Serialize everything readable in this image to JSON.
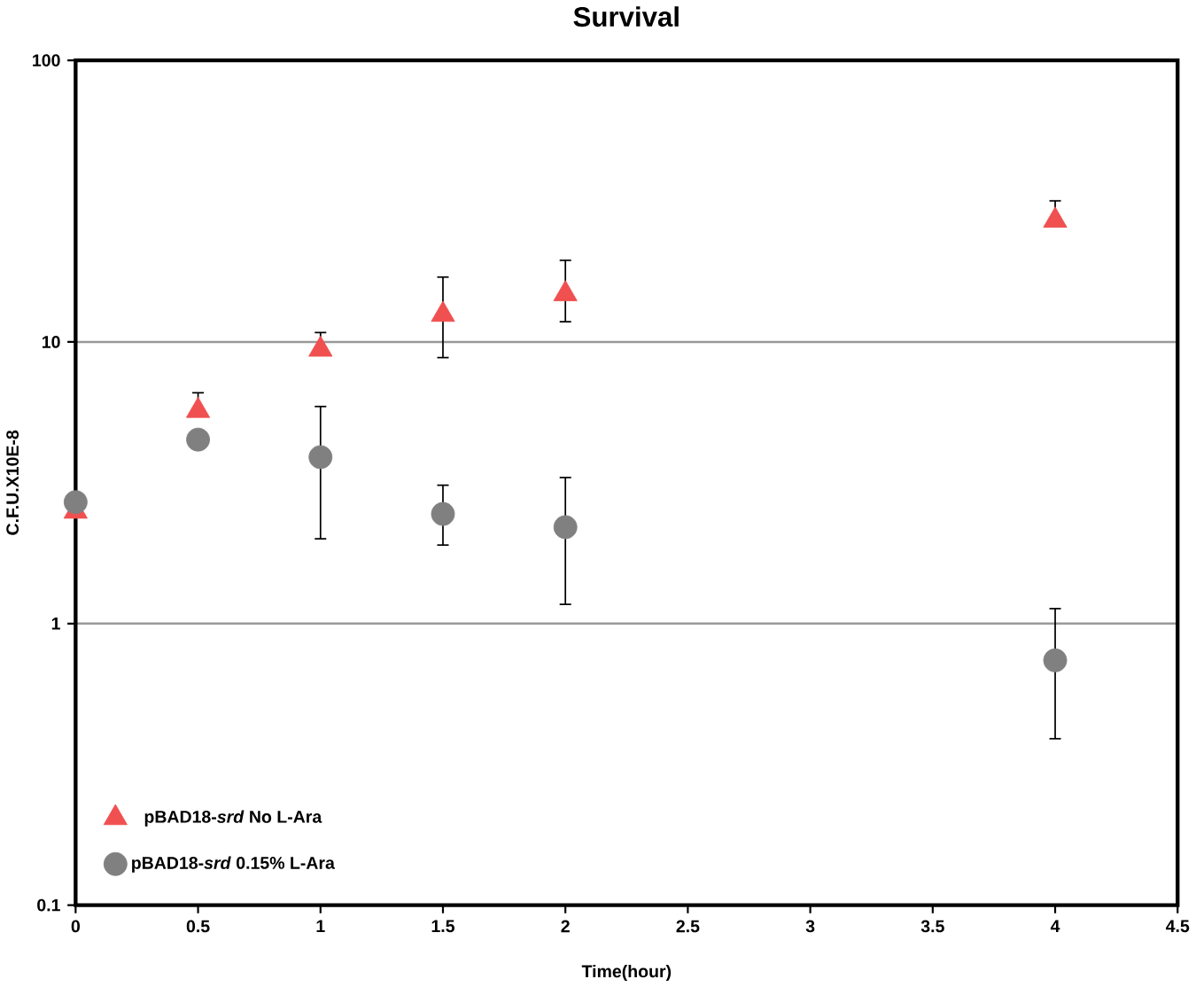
{
  "chart_data": {
    "type": "scatter",
    "title": "Survival",
    "xlabel": "Time(hour)",
    "ylabel": "C.F.U.X10E-8",
    "log": "y",
    "grid": "y",
    "legend": "bottom left",
    "xlim": [
      0,
      4.5
    ],
    "xticks": [
      0,
      0.5,
      1,
      1.5,
      2,
      2.5,
      3,
      3.5,
      4,
      4.5
    ],
    "ylim": [
      0.1,
      100
    ],
    "yticks": [
      0.1,
      1,
      10,
      100
    ],
    "x": [
      0,
      0.5,
      1,
      1.5,
      2,
      4
    ],
    "series": [
      {
        "name": "pBAD18-*srd* No L-Ara",
        "color": "#f05050",
        "marker": "triangle",
        "values": [
          2.5,
          5.7,
          9.4,
          12.5,
          14.8,
          27
        ],
        "errors": [
          null,
          [
            5.7,
            6.6
          ],
          [
            9.4,
            10.8
          ],
          [
            8.8,
            17
          ],
          [
            11.8,
            19.5
          ],
          [
            27,
            31.7
          ]
        ]
      },
      {
        "name": "pBAD18-*srd* 0.15% L-Ara",
        "color": "#808080",
        "marker": "circle",
        "values": [
          2.7,
          4.5,
          3.9,
          2.45,
          2.2,
          0.74
        ],
        "errors": [
          null,
          null,
          [
            2.0,
            5.9
          ],
          [
            1.9,
            3.1
          ],
          [
            1.17,
            3.3
          ],
          [
            0.39,
            1.13
          ]
        ]
      }
    ]
  }
}
